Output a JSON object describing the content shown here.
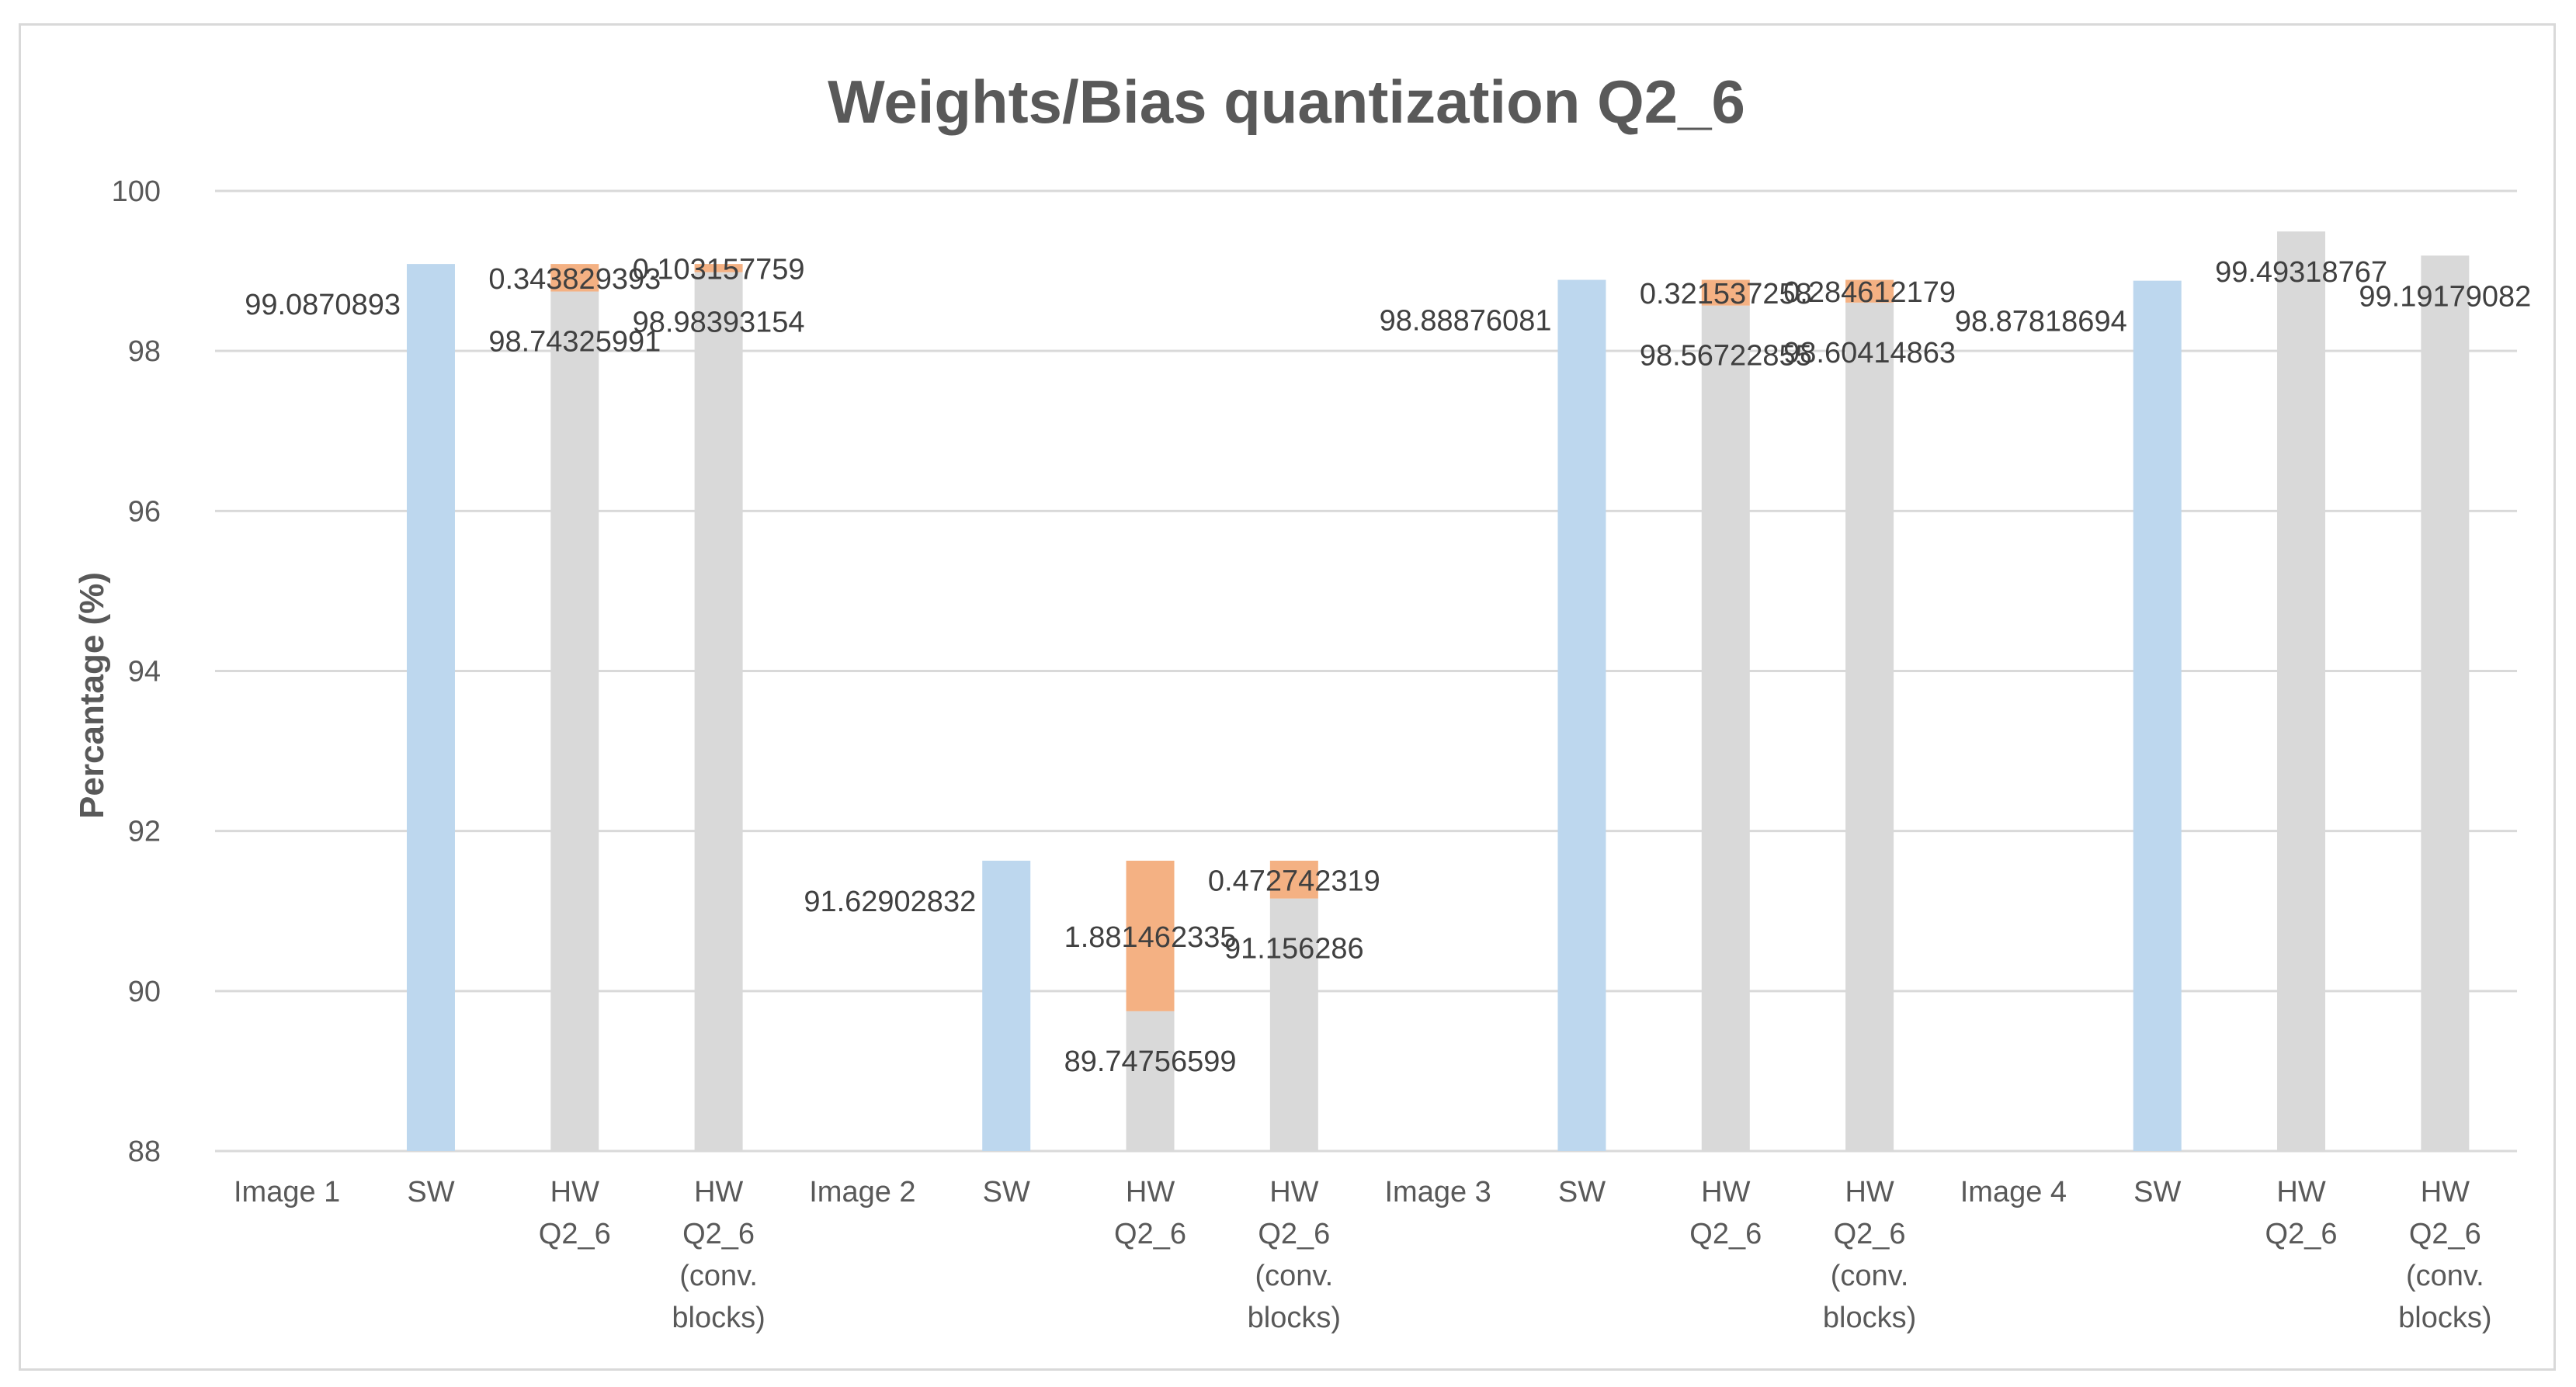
{
  "chart_data": {
    "type": "bar",
    "stacked": true,
    "title": "Weights/Bias quantization Q2_6",
    "ylabel": "Percantage (%)",
    "xlabel": "",
    "ylim": [
      88,
      100
    ],
    "yticks": [
      88,
      90,
      92,
      94,
      96,
      98,
      100
    ],
    "grid": true,
    "groups": [
      {
        "name": "Image 1",
        "bars": [
          {
            "label": [
              "SW"
            ],
            "kind": "sw",
            "value": 99.0870893,
            "delta": null
          },
          {
            "label": [
              "HW",
              "Q2_6"
            ],
            "kind": "hw",
            "value": 98.74325991,
            "delta": 0.343829393
          },
          {
            "label": [
              "HW",
              "Q2_6",
              "(conv.",
              "blocks)"
            ],
            "kind": "hw",
            "value": 98.98393154,
            "delta": 0.103157759
          }
        ]
      },
      {
        "name": "Image 2",
        "bars": [
          {
            "label": [
              "SW"
            ],
            "kind": "sw",
            "value": 91.62902832,
            "delta": null
          },
          {
            "label": [
              "HW",
              "Q2_6"
            ],
            "kind": "hw",
            "value": 89.74756599,
            "delta": 1.881462335
          },
          {
            "label": [
              "HW",
              "Q2_6",
              "(conv.",
              "blocks)"
            ],
            "kind": "hw",
            "value": 91.156286,
            "delta": 0.472742319
          }
        ]
      },
      {
        "name": "Image 3",
        "bars": [
          {
            "label": [
              "SW"
            ],
            "kind": "sw",
            "value": 98.88876081,
            "delta": null
          },
          {
            "label": [
              "HW",
              "Q2_6"
            ],
            "kind": "hw",
            "value": 98.56722855,
            "delta": 0.321537258
          },
          {
            "label": [
              "HW",
              "Q2_6",
              "(conv.",
              "blocks)"
            ],
            "kind": "hw",
            "value": 98.60414863,
            "delta": 0.284612179
          }
        ]
      },
      {
        "name": "Image 4",
        "bars": [
          {
            "label": [
              "SW"
            ],
            "kind": "sw",
            "value": 98.87818694,
            "delta": null
          },
          {
            "label": [
              "HW",
              "Q2_6"
            ],
            "kind": "hw",
            "value": 99.49318767,
            "delta": null
          },
          {
            "label": [
              "HW",
              "Q2_6",
              "(conv.",
              "blocks)"
            ],
            "kind": "hw",
            "value": 99.19179082,
            "delta": null
          }
        ]
      }
    ],
    "display_labels": {
      "g0_sw": "99.0870893",
      "g0_hw": "98.74325991",
      "g0_hw_delta": "0.343829393",
      "g0_hwc": "98.98393154",
      "g0_hwc_delta": "0.103157759",
      "g1_sw": "91.62902832",
      "g1_hw": "89.74756599",
      "g1_hw_delta": "1.881462335",
      "g1_hwc": "91.156286",
      "g1_hwc_delta": "0.472742319",
      "g2_sw": "98.88876081",
      "g2_hw": "98.56722855",
      "g2_hw_delta": "0.321537258",
      "g2_hwc": "98.60414863",
      "g2_hwc_delta": "0.284612179",
      "g3_sw": "98.87818694",
      "g3_hw": "99.49318767",
      "g3_hwc": "99.19179082"
    },
    "colors": {
      "sw": "#bdd7ee",
      "hw": "#d9d9d9",
      "delta": "#f4b183",
      "grid": "#d9d9d9",
      "text": "#595959"
    }
  }
}
